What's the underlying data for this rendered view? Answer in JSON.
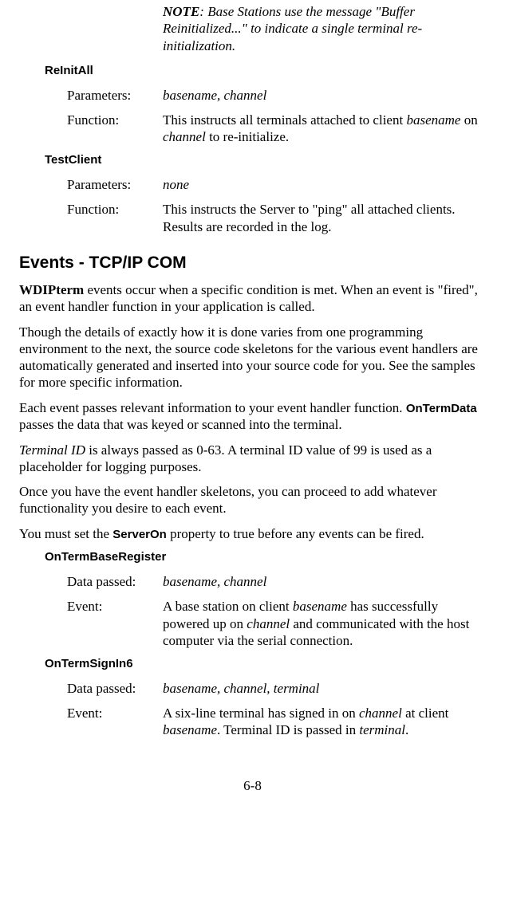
{
  "note": {
    "label": "NOTE",
    "text": ": Base Stations use the message \"Buffer Reinitialized...\" to indicate a single terminal re-initialization."
  },
  "methods": [
    {
      "name": "ReInitAll",
      "rows": [
        {
          "label": "Parameters:",
          "value_html": "<span class='italic'>basename, channel</span>"
        },
        {
          "label": "Function:",
          "value_html": "This instructs all terminals attached to client <span class='italic'>basename</span> on <span class='italic'>channel</span> to re-initialize."
        }
      ]
    },
    {
      "name": "TestClient",
      "rows": [
        {
          "label": "Parameters:",
          "value_html": "<span class='italic'>none</span>"
        },
        {
          "label": "Function:",
          "value_html": "This instructs the Server to \"ping\" all attached clients. Results are recorded in the log."
        }
      ]
    }
  ],
  "section_heading": "Events - TCP/IP COM",
  "paragraphs": [
    "<b>WDIPterm</b> events occur when a specific condition is met.  When an event is \"fired\", an event handler function in your application is called.",
    "Though the details of exactly how it is done varies from one programming environment to the next, the source code skeletons for the various event handlers are automatically generated and inserted into your source code for you. See the samples for more specific information.",
    "Each event passes relevant information to your event handler function. <span class='bold-sans-inline'>OnTermData</span> passes the data that was keyed or scanned into the terminal.",
    "<span class='italic'>Terminal ID</span> is always passed as 0-63.  A terminal ID value of 99 is used as a placeholder for logging purposes.",
    "Once you have the event handler skeletons, you can proceed to add whatever functionality you desire to each event.",
    "You must set the <span class='bold-sans-inline'>ServerOn</span> property to true before any events can be fired."
  ],
  "events": [
    {
      "name": "OnTermBaseRegister",
      "rows": [
        {
          "label": "Data passed:",
          "value_html": "<span class='italic'>basename, channel</span>"
        },
        {
          "label": "Event:",
          "value_html": "A base station on client <span class='italic'>basename</span> has successfully powered up on <span class='italic'>channel</span> and communicated with the host computer via the serial connection."
        }
      ]
    },
    {
      "name": "OnTermSignIn6",
      "rows": [
        {
          "label": "Data passed:",
          "value_html": "<span class='italic'>basename, channel, terminal</span>"
        },
        {
          "label": "Event:",
          "value_html": "A six-line terminal has signed in on <span class='italic'>channel</span> at client <span class='italic'>basename</span>. Terminal ID is passed in <span class='italic'>terminal</span>."
        }
      ]
    }
  ],
  "page_number": "6-8"
}
